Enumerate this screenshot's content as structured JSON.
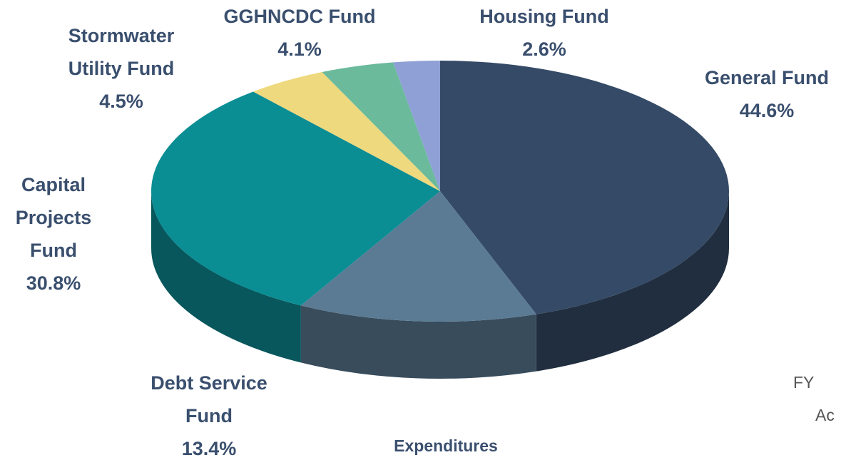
{
  "chart_data": {
    "type": "pie",
    "categories": [
      "General Fund",
      "Debt Service Fund",
      "Capital Projects Fund",
      "Stormwater Utility Fund",
      "GGHNCDC Fund",
      "Housing Fund"
    ],
    "values": [
      44.6,
      13.4,
      30.8,
      4.5,
      4.1,
      2.6
    ],
    "value_labels": [
      "44.6%",
      "13.4%",
      "30.8%",
      "4.5%",
      "4.1%",
      "2.6%"
    ],
    "colors": [
      "#344a66",
      "#5b7b94",
      "#0b8d94",
      "#eed97e",
      "#6bba9c",
      "#8fa0d6"
    ],
    "caption": "Expenditures",
    "annotations": [
      "FY",
      "Ac"
    ]
  }
}
